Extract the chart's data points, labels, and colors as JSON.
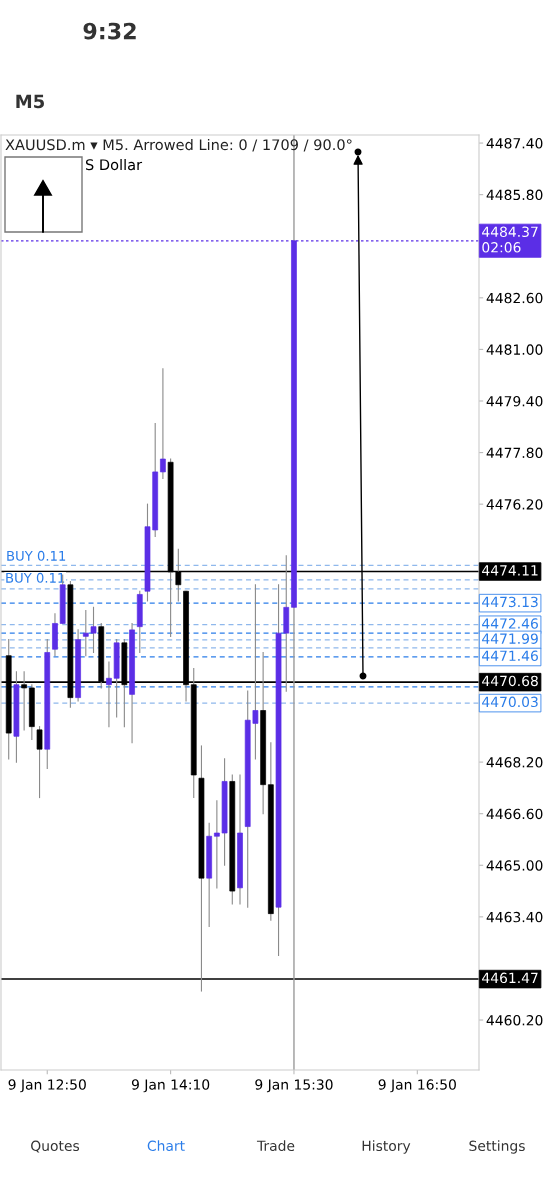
{
  "chart_data": {
    "type": "candlestick",
    "title": "XAUUSD.m ▾ M5. Arrowed Line: 0 / 1709 / 90.0°",
    "subtitle": "S Dollar",
    "categories": [
      null,
      null,
      null,
      null,
      null,
      "9 Jan 12:50",
      null,
      null,
      null,
      null,
      null,
      null,
      null,
      null,
      null,
      null,
      null,
      null,
      null,
      null,
      null,
      "9 Jan 14:10",
      null,
      null,
      null,
      null,
      null,
      null,
      null,
      null,
      null,
      null,
      null,
      null,
      null,
      null,
      null,
      "9 Jan 15:30",
      null,
      null,
      null,
      null,
      null,
      null,
      null,
      null,
      null,
      null,
      null,
      null,
      null,
      null,
      null,
      "9 Jan 16:50",
      null,
      null,
      null,
      null,
      null,
      null,
      null,
      null
    ],
    "ohlc": [
      [
        4471.5,
        4472.0,
        4468.3,
        4469.1
      ],
      [
        4469.0,
        4471.0,
        4468.2,
        4470.6
      ],
      [
        4470.6,
        4471.0,
        4469.2,
        4470.5
      ],
      [
        4470.5,
        4470.6,
        4468.9,
        4469.3
      ],
      [
        4469.2,
        4469.3,
        4467.1,
        4468.6
      ],
      [
        4468.6,
        4472.0,
        4468.0,
        4471.6
      ],
      [
        4471.7,
        4472.8,
        4471.5,
        4472.5
      ],
      [
        4472.5,
        4474.0,
        4472.5,
        4473.7
      ],
      [
        4473.7,
        4473.8,
        4469.9,
        4470.2
      ],
      [
        4470.2,
        4472.3,
        4470.1,
        4472.0
      ],
      [
        4472.1,
        4472.9,
        4471.5,
        4472.2
      ],
      [
        4472.2,
        4473.0,
        4471.6,
        4472.4
      ],
      [
        4472.4,
        4472.5,
        4470.5,
        4470.7
      ],
      [
        4470.6,
        4471.3,
        4469.3,
        4470.8
      ],
      [
        4470.8,
        4472.0,
        4469.6,
        4471.9
      ],
      [
        4471.9,
        4472.0,
        4469.3,
        4470.6
      ],
      [
        4470.3,
        4472.5,
        4468.8,
        4472.3
      ],
      [
        4472.4,
        4473.5,
        4471.6,
        4473.4
      ],
      [
        4473.5,
        4476.2,
        4473.2,
        4475.5
      ],
      [
        4475.4,
        4478.7,
        4475.2,
        4477.2
      ],
      [
        4477.2,
        4480.4,
        4477.0,
        4477.6
      ],
      [
        4477.5,
        4477.6,
        4472.1,
        4474.1
      ],
      [
        4474.1,
        4474.8,
        4473.2,
        4473.7
      ],
      [
        4473.5,
        4473.5,
        4470.1,
        4470.6
      ],
      [
        4470.6,
        4471.1,
        4467.1,
        4467.8
      ],
      [
        4467.7,
        4468.7,
        4461.1,
        4464.6
      ],
      [
        4464.6,
        4466.3,
        4463.1,
        4465.9
      ],
      [
        4465.9,
        4467.0,
        4464.3,
        4466.0
      ],
      [
        4466.0,
        4468.3,
        4465.0,
        4467.6
      ],
      [
        4467.6,
        4467.8,
        4463.8,
        4464.2
      ],
      [
        4464.3,
        4467.8,
        4463.8,
        4466.0
      ],
      [
        4466.2,
        4470.4,
        4463.7,
        4469.5
      ],
      [
        4469.4,
        4473.7,
        4468.3,
        4469.8
      ],
      [
        4469.8,
        4471.6,
        4466.6,
        4467.5
      ],
      [
        4467.5,
        4468.8,
        4463.3,
        4463.5
      ],
      [
        4463.7,
        4473.7,
        4462.2,
        4472.2
      ],
      [
        4472.2,
        4474.6,
        4470.4,
        4473.0
      ],
      [
        4473.0,
        4484.37,
        4473.0,
        4484.37
      ],
      null,
      null,
      null,
      null,
      null,
      null,
      null,
      null,
      null,
      null,
      null,
      null,
      null,
      null,
      null,
      null,
      null,
      null,
      null,
      null,
      null,
      null,
      null,
      null
    ],
    "colors": [
      "#000000",
      "#5b2ee6",
      "#000000",
      "#000000",
      "#000000",
      "#5b2ee6",
      "#5b2ee6",
      "#5b2ee6",
      "#000000",
      "#5b2ee6",
      "#5b2ee6",
      "#5b2ee6",
      "#000000",
      "#5b2ee6",
      "#5b2ee6",
      "#000000",
      "#5b2ee6",
      "#5b2ee6",
      "#5b2ee6",
      "#5b2ee6",
      "#5b2ee6",
      "#000000",
      "#000000",
      "#000000",
      "#000000",
      "#000000",
      "#5b2ee6",
      "#5b2ee6",
      "#5b2ee6",
      "#000000",
      "#5b2ee6",
      "#5b2ee6",
      "#5b2ee6",
      "#000000",
      "#000000",
      "#5b2ee6",
      "#5b2ee6",
      "#5b2ee6",
      null,
      null,
      null,
      null,
      null,
      null,
      null,
      null,
      null,
      null,
      null,
      null,
      null,
      null,
      null,
      null,
      null,
      null,
      null,
      null,
      null,
      null,
      null,
      null
    ],
    "ylim": [
      4458.65,
      4487.65
    ],
    "yticks": [
      {
        "value": 4487.4,
        "label": "4487.40"
      },
      {
        "value": 4485.8,
        "label": "4485.80"
      },
      {
        "value": 4482.6,
        "label": "4482.60"
      },
      {
        "value": 4481.0,
        "label": "4481.00"
      },
      {
        "value": 4479.4,
        "label": "4479.40"
      },
      {
        "value": 4477.8,
        "label": "4477.80"
      },
      {
        "value": 4476.2,
        "label": "4476.20"
      },
      {
        "value": 4468.2,
        "label": "4468.20"
      },
      {
        "value": 4466.6,
        "label": "4466.60"
      },
      {
        "value": 4465.0,
        "label": "4465.00"
      },
      {
        "value": 4463.4,
        "label": "4463.40"
      },
      {
        "value": 4460.2,
        "label": "4460.20"
      }
    ],
    "ref_lines": [
      {
        "axis": "y",
        "value": 4484.37,
        "label": "4484.37\n02:06",
        "color": "#5b2ee6",
        "line_style": "dotted"
      },
      {
        "axis": "y",
        "value": 4474.11,
        "label": "4474.11",
        "color": "#000000",
        "line_style": "solid"
      },
      {
        "axis": "y",
        "value": 4470.68,
        "label": "4470.68",
        "color": "#000000",
        "line_style": "solid"
      },
      {
        "axis": "y",
        "value": 4461.47,
        "label": "4461.47",
        "color": "#000000",
        "line_style": "solid"
      },
      {
        "axis": "y",
        "value": 4474.3,
        "label": null,
        "color": "#8fb8ec",
        "line_style": "dashed"
      },
      {
        "axis": "y",
        "value": 4473.85,
        "label": null,
        "color": "#8fb8ec",
        "line_style": "dashed"
      },
      {
        "axis": "y",
        "value": 4473.57,
        "label": null,
        "color": "#8fb8ec",
        "line_style": "dashed"
      },
      {
        "axis": "y",
        "value": 4473.13,
        "label": "4473.13",
        "color": "#2b7de9",
        "line_style": "dashed"
      },
      {
        "axis": "y",
        "value": 4472.46,
        "label": "4472.46",
        "color": "#8fb8ec",
        "line_style": "dashed"
      },
      {
        "axis": "y",
        "value": 4472.2,
        "label": null,
        "color": "#2b7de9",
        "line_style": "dashed"
      },
      {
        "axis": "y",
        "value": 4471.99,
        "label": "4471.99",
        "color": "#8fb8ec",
        "line_style": "dashed"
      },
      {
        "axis": "y",
        "value": 4471.74,
        "label": null,
        "color": "#8fb8ec",
        "line_style": "dashed"
      },
      {
        "axis": "y",
        "value": 4471.46,
        "label": "4471.46",
        "color": "#2b7de9",
        "line_style": "dashed"
      },
      {
        "axis": "y",
        "value": 4470.53,
        "label": null,
        "color": "#2b7de9",
        "line_style": "dashed"
      },
      {
        "axis": "y",
        "value": 4470.03,
        "label": "4470.03",
        "color": "#8fb8ec",
        "line_style": "dashed"
      },
      {
        "axis": "x",
        "value": "9 Jan 15:30",
        "label": null,
        "color": "#9a9a9a",
        "line_style": "solid"
      }
    ],
    "annotations": [
      "9:32",
      "M5",
      "Quotes",
      "Chart",
      "Trade",
      "History",
      "Settings",
      "BUY 0.11",
      "BUY 0.11"
    ],
    "grid": false,
    "legend": false
  }
}
